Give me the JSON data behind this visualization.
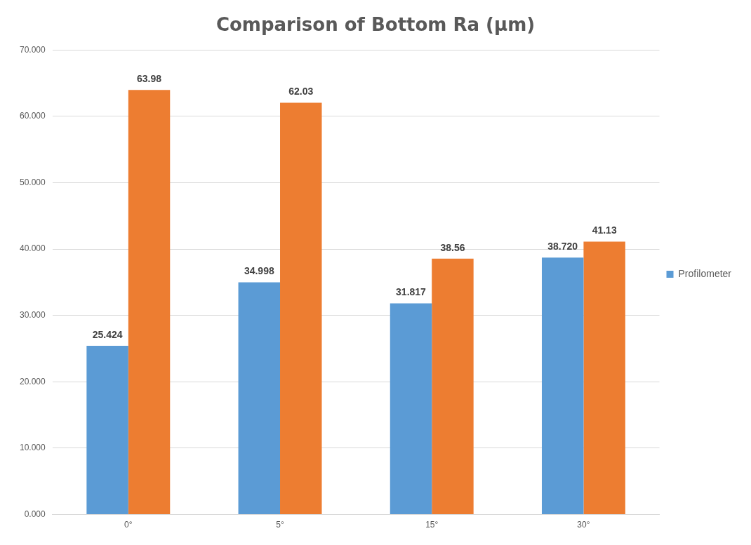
{
  "chart_data": {
    "type": "bar",
    "title": "Comparison of Bottom Ra (µm)",
    "categories": [
      "0°",
      "5°",
      "15°",
      "30°"
    ],
    "series": [
      {
        "name": "Profilometer",
        "color": "#5b9bd5",
        "values": [
          25.424,
          34.998,
          31.817,
          38.72
        ],
        "value_labels": [
          "25.424",
          "34.998",
          "31.817",
          "38.720"
        ]
      },
      {
        "color": "#ed7d31",
        "values": [
          63.98,
          62.03,
          38.56,
          41.13
        ],
        "value_labels": [
          "63.98",
          "62.03",
          "38.56",
          "41.13"
        ]
      }
    ],
    "ylim": [
      0,
      70
    ],
    "yticks": [
      {
        "value": 0,
        "label": "0.000"
      },
      {
        "value": 10,
        "label": "10.000"
      },
      {
        "value": 20,
        "label": "20.000"
      },
      {
        "value": 30,
        "label": "30.000"
      },
      {
        "value": 40,
        "label": "40.000"
      },
      {
        "value": 50,
        "label": "50.000"
      },
      {
        "value": 60,
        "label": "60.000"
      },
      {
        "value": 70,
        "label": "70.000"
      }
    ],
    "grid": "y",
    "legend": "right"
  }
}
